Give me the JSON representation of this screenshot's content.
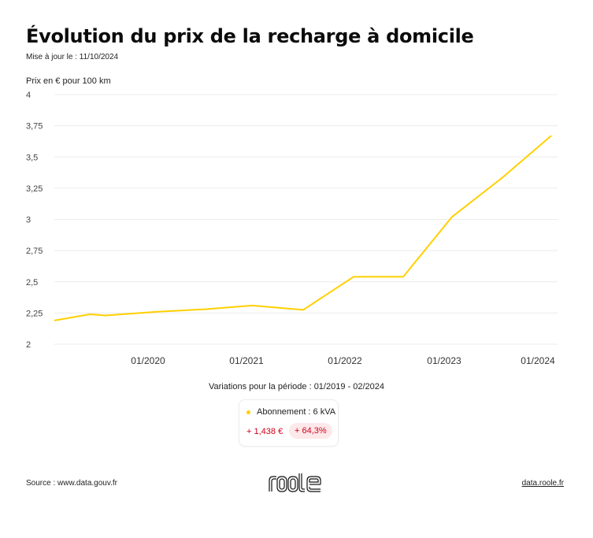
{
  "header": {
    "title": "Évolution du prix de la recharge à domicile",
    "updated": "Mise à jour le : 11/10/2024",
    "unit_label": "Prix en € pour 100 km"
  },
  "colors": {
    "series": "#FFD000",
    "grid": "#EBEBEB",
    "negative_text": "#D0021B",
    "negative_bg": "#FDE8EA"
  },
  "chart_data": {
    "type": "line",
    "title": "Évolution du prix de la recharge à domicile",
    "xlabel": "",
    "ylabel": "Prix en € pour 100 km",
    "ylim": [
      2,
      4
    ],
    "yticks": [
      "4",
      "3,75",
      "3,5",
      "3,25",
      "3",
      "2,75",
      "2,5",
      "2,25",
      "2"
    ],
    "xticks": [
      "01/2020",
      "01/2021",
      "01/2022",
      "01/2023",
      "01/2024"
    ],
    "grid": true,
    "legend_position": "bottom",
    "series": [
      {
        "name": "Abonnement : 6 kVA",
        "x": [
          "02/2019",
          "08/2019",
          "10/2019",
          "04/2020",
          "10/2020",
          "04/2021",
          "10/2021",
          "04/2022",
          "10/2022",
          "04/2023",
          "10/2023",
          "04/2024"
        ],
        "values": [
          2.19,
          2.24,
          2.23,
          2.26,
          2.28,
          2.31,
          2.275,
          2.54,
          2.54,
          3.02,
          3.33,
          3.67
        ]
      }
    ]
  },
  "legend": {
    "period": "Variations pour la période : 01/2019 - 02/2024",
    "series_label": "Abonnement : 6 kVA",
    "delta_abs": "+ 1,438 €",
    "delta_pct": "+ 64,3%"
  },
  "footer": {
    "source": "Source : www.data.gouv.fr",
    "logo": "roole",
    "link": "data.roole.fr"
  }
}
